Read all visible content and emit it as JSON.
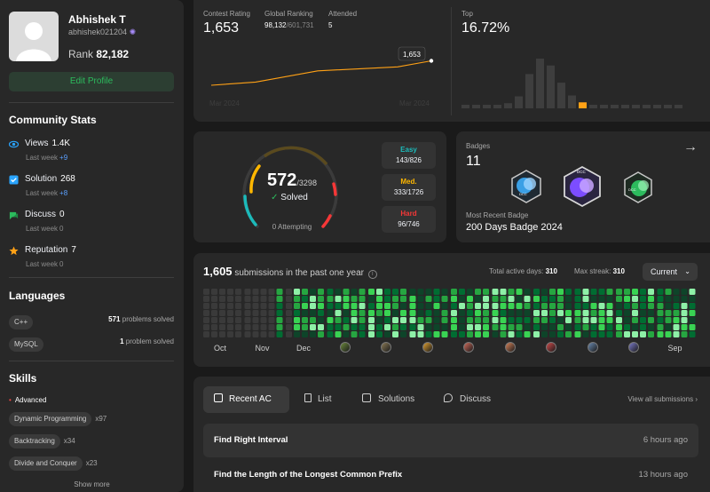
{
  "profile": {
    "name": "Abhishek T",
    "handle": "abhishek021204",
    "rank_label": "Rank",
    "rank_value": "82,182",
    "edit_label": "Edit Profile"
  },
  "community": {
    "title": "Community Stats",
    "items": [
      {
        "label": "Views",
        "value": "1.4K",
        "sub": "Last week",
        "delta": "+9",
        "icon": "eye-icon",
        "color": "#2aa5ff"
      },
      {
        "label": "Solution",
        "value": "268",
        "sub": "Last week",
        "delta": "+8",
        "icon": "check-square-icon",
        "color": "#2aa5ff"
      },
      {
        "label": "Discuss",
        "value": "0",
        "sub": "Last week",
        "delta": "0",
        "icon": "chat-icon",
        "color": "#2cbb5d"
      },
      {
        "label": "Reputation",
        "value": "7",
        "sub": "Last week",
        "delta": "0",
        "icon": "star-icon",
        "color": "#ffa116"
      }
    ]
  },
  "languages": {
    "title": "Languages",
    "items": [
      {
        "name": "C++",
        "count": "571",
        "suffix": "problems solved"
      },
      {
        "name": "MySQL",
        "count": "1",
        "suffix": "problem solved"
      }
    ]
  },
  "skills": {
    "title": "Skills",
    "level": "Advanced",
    "items": [
      {
        "name": "Dynamic Programming",
        "count": "x97"
      },
      {
        "name": "Backtracking",
        "count": "x34"
      },
      {
        "name": "Divide and Conquer",
        "count": "x23"
      }
    ],
    "show_more": "Show more"
  },
  "contest": {
    "rating_label": "Contest Rating",
    "rating": "1,653",
    "global_label": "Global Ranking",
    "global_rank": "98,132",
    "global_total": "/601,731",
    "attended_label": "Attended",
    "attended": "5",
    "tooltip": "1,653",
    "x_start": "Mar 2024",
    "x_end": "Mar 2024",
    "rating_series": [
      1500,
      1520,
      1590,
      1615,
      1653
    ],
    "top_label": "Top",
    "top_value": "16.72%",
    "histogram": [
      1,
      1,
      1,
      2,
      6,
      14,
      40,
      58,
      50,
      30,
      15,
      7,
      3,
      1,
      1,
      1,
      1,
      1,
      1,
      1,
      1
    ],
    "histogram_highlight": 11,
    "accent": "#ffa116"
  },
  "solved": {
    "count": "572",
    "total": "/3298",
    "check": "✓",
    "label": "Solved",
    "attempting": "0 Attempting",
    "easy": {
      "label": "Easy",
      "value": "143/826",
      "color": "#1cbaba"
    },
    "medium": {
      "label": "Med.",
      "value": "333/1726",
      "color": "#ffb700"
    },
    "hard": {
      "label": "Hard",
      "value": "96/746",
      "color": "#f63737"
    }
  },
  "badges": {
    "title": "Badges",
    "count": "11",
    "recent_label": "Most Recent Badge",
    "recent_name": "200 Days Badge 2024",
    "arrow": "→",
    "badge_text": "DCC"
  },
  "submissions": {
    "count": "1,605",
    "label": "submissions in the past one year",
    "info": "i",
    "active_label": "Total active days:",
    "active_days": "310",
    "streak_label": "Max streak:",
    "streak": "310",
    "period": "Current",
    "months": [
      "Oct",
      "Nov",
      "Dec",
      "",
      "",
      "",
      "",
      "",
      "",
      "",
      "",
      "Sep"
    ]
  },
  "recent": {
    "tabs": [
      {
        "label": "Recent AC",
        "icon": "checklist-icon"
      },
      {
        "label": "List",
        "icon": "document-icon"
      },
      {
        "label": "Solutions",
        "icon": "check-square-icon"
      },
      {
        "label": "Discuss",
        "icon": "chat-icon"
      }
    ],
    "view_all": "View all submissions",
    "rows": [
      {
        "title": "Find Right Interval",
        "time": "6 hours ago"
      },
      {
        "title": "Find the Length of the Longest Common Prefix",
        "time": "13 hours ago"
      }
    ]
  }
}
